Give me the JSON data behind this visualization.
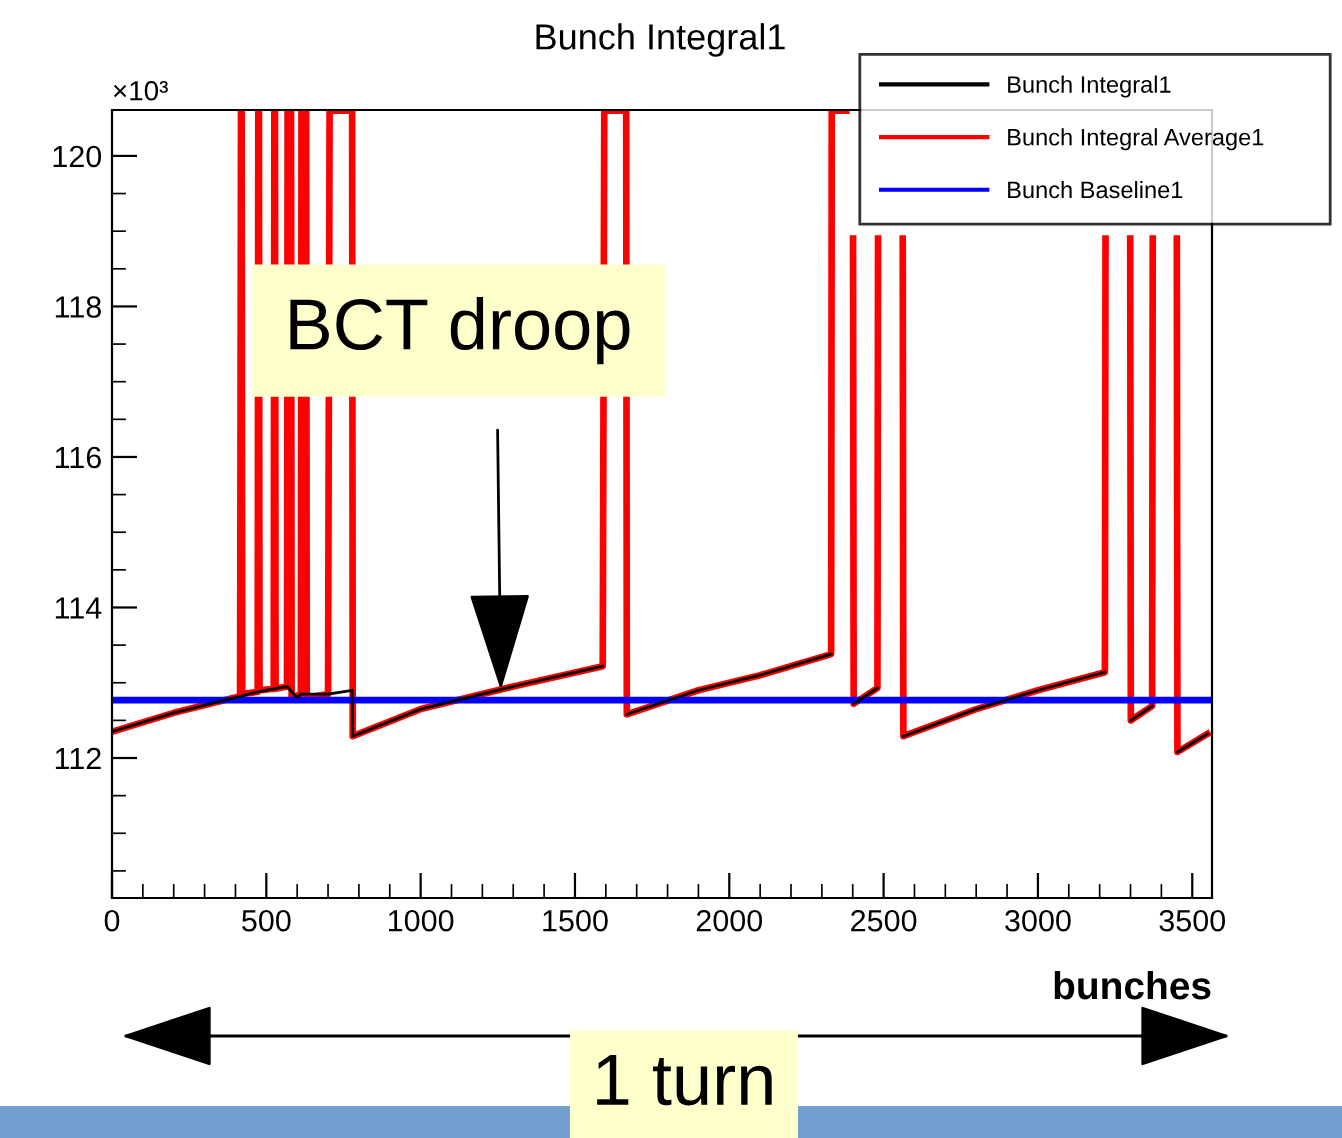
{
  "chart_data": {
    "type": "line",
    "title": "Bunch Integral1",
    "xlabel": "bunches",
    "ylabel": "×10³",
    "xlim": [
      0,
      3564
    ],
    "ylim": [
      110.14,
      120.61
    ],
    "xticks": [
      0,
      {
        "value": 100,
        "label": null
      },
      {
        "value": 200,
        "label": null
      },
      {
        "value": 300,
        "label": null
      },
      {
        "value": 400,
        "label": null
      },
      500,
      {
        "value": 600,
        "label": null
      },
      {
        "value": 700,
        "label": null
      },
      {
        "value": 800,
        "label": null
      },
      {
        "value": 900,
        "label": null
      },
      1000,
      {
        "value": 1100,
        "label": null
      },
      {
        "value": 1200,
        "label": null
      },
      {
        "value": 1300,
        "label": null
      },
      {
        "value": 1400,
        "label": null
      },
      1500,
      {
        "value": 1600,
        "label": null
      },
      {
        "value": 1700,
        "label": null
      },
      {
        "value": 1800,
        "label": null
      },
      {
        "value": 1900,
        "label": null
      },
      2000,
      {
        "value": 2100,
        "label": null
      },
      {
        "value": 2200,
        "label": null
      },
      {
        "value": 2300,
        "label": null
      },
      {
        "value": 2400,
        "label": null
      },
      2500,
      {
        "value": 2600,
        "label": null
      },
      {
        "value": 2700,
        "label": null
      },
      {
        "value": 2800,
        "label": null
      },
      {
        "value": 2900,
        "label": null
      },
      3000,
      {
        "value": 3100,
        "label": null
      },
      {
        "value": 3200,
        "label": null
      },
      {
        "value": 3300,
        "label": null
      },
      {
        "value": 3400,
        "label": null
      },
      3500
    ],
    "yticks": [
      {
        "value": 110.5,
        "label": null
      },
      {
        "value": 111,
        "label": null
      },
      {
        "value": 111.5,
        "label": null
      },
      112,
      {
        "value": 112.5,
        "label": null
      },
      {
        "value": 113,
        "label": null
      },
      {
        "value": 113.5,
        "label": null
      },
      114,
      {
        "value": 114.5,
        "label": null
      },
      {
        "value": 115,
        "label": null
      },
      {
        "value": 115.5,
        "label": null
      },
      116,
      {
        "value": 116.5,
        "label": null
      },
      {
        "value": 117,
        "label": null
      },
      {
        "value": 117.5,
        "label": null
      },
      118,
      {
        "value": 118.5,
        "label": null
      },
      {
        "value": 119,
        "label": null
      },
      {
        "value": 119.5,
        "label": null
      },
      120
    ],
    "grid": false,
    "legend": "top right",
    "marker": "none",
    "line_style": "solid",
    "series": [
      {
        "name": "Bunch Integral1",
        "color": "#000000",
        "x": [
          0,
          200,
          415,
          472,
          524,
          567,
          600,
          612,
          700,
          778,
          780,
          1000,
          1300,
          1590,
          1595,
          1668,
          1900,
          2100,
          2330,
          2332,
          2403,
          2480,
          2482,
          2564,
          2800,
          3000,
          3217,
          3219,
          3301,
          3370,
          3372,
          3452,
          3549
        ],
        "values": [
          112.35,
          112.6,
          112.82,
          112.88,
          112.92,
          112.95,
          112.8,
          112.85,
          112.85,
          112.9,
          112.29,
          112.65,
          112.95,
          113.22,
          null,
          112.58,
          112.9,
          113.1,
          113.38,
          null,
          112.72,
          112.93,
          null,
          112.29,
          112.65,
          112.9,
          113.14,
          null,
          112.5,
          112.69,
          null,
          112.08,
          112.32
        ]
      },
      {
        "name": "Bunch Integral Average1",
        "color": "#ff0000",
        "x": [
          0,
          200,
          415,
          418,
          420,
          422,
          472,
          474,
          476,
          478,
          524,
          526,
          528,
          530,
          567,
          569,
          580,
          582,
          612,
          614,
          629,
          631,
          700,
          705,
          778,
          780,
          1000,
          1300,
          1590,
          1595,
          1666,
          1668,
          1900,
          2100,
          2330,
          2332,
          2379,
          2390,
          2401,
          2403,
          2480,
          2482,
          2522,
          2562,
          2564,
          2800,
          3000,
          3217,
          3219,
          3259,
          3299,
          3301,
          3370,
          3372,
          3411,
          3450,
          3452,
          3549
        ],
        "values": [
          112.35,
          112.6,
          112.82,
          120.6,
          120.6,
          112.85,
          112.88,
          120.6,
          120.6,
          112.9,
          112.92,
          120.6,
          120.6,
          112.92,
          112.95,
          120.6,
          120.6,
          112.8,
          112.85,
          120.6,
          120.6,
          112.8,
          112.85,
          120.6,
          120.6,
          112.29,
          112.65,
          112.95,
          113.22,
          120.6,
          120.6,
          112.58,
          112.9,
          113.1,
          113.38,
          120.6,
          120.6,
          null,
          118.9,
          112.72,
          112.93,
          118.9,
          null,
          118.9,
          112.29,
          112.65,
          112.9,
          113.14,
          118.9,
          null,
          118.9,
          112.5,
          112.69,
          118.9,
          null,
          118.9,
          112.08,
          112.32
        ]
      },
      {
        "name": "Bunch Baseline1",
        "color": "#0000ff",
        "x": [
          0,
          3564
        ],
        "values": [
          112.77,
          112.77
        ]
      }
    ],
    "annotations": [
      {
        "text": "BCT droop",
        "x": 1260,
        "y": 112.9
      },
      "1 turn"
    ]
  }
}
